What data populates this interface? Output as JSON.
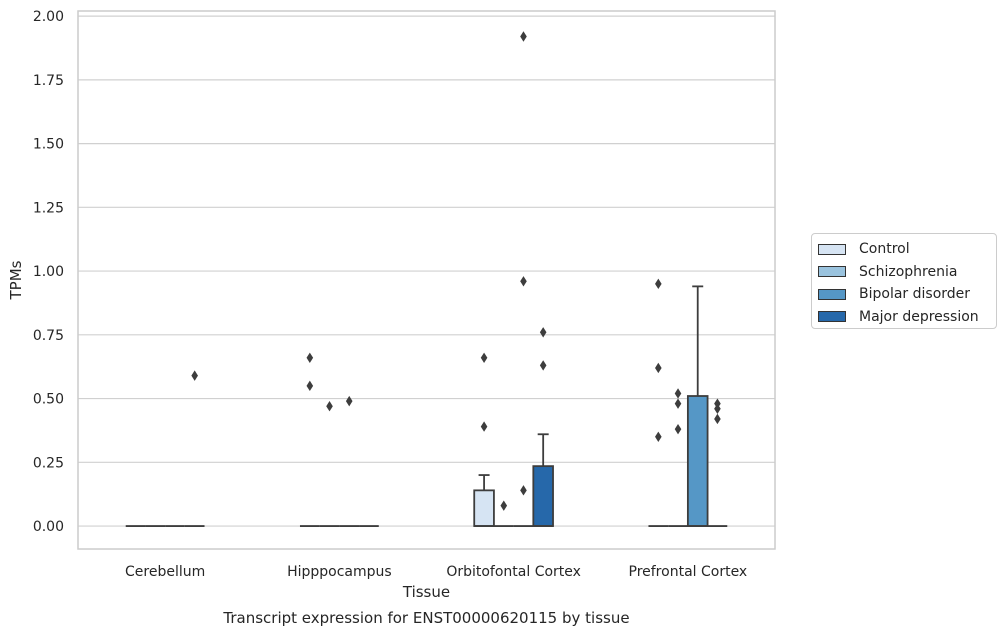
{
  "chart_data": {
    "type": "box",
    "title": "Transcript expression for ENST00000620115 by tissue",
    "xlabel": "Tissue",
    "ylabel": "TPMs",
    "ylim": [
      -0.09,
      2.02
    ],
    "yticks": [
      "0.00",
      "0.25",
      "0.50",
      "0.75",
      "1.00",
      "1.25",
      "1.50",
      "1.75",
      "2.00"
    ],
    "grid": true,
    "legend_position": "right",
    "categories": [
      "Cerebellum",
      "Hipppocampus",
      "Orbitofontal Cortex",
      "Prefrontal Cortex"
    ],
    "series": [
      {
        "name": "Control",
        "color": "#d6e4f3",
        "boxes": [
          {
            "q1": 0,
            "median": 0,
            "q3": 0,
            "whisker_low": 0,
            "whisker_high": 0,
            "outliers": []
          },
          {
            "q1": 0,
            "median": 0,
            "q3": 0,
            "whisker_low": 0,
            "whisker_high": 0,
            "outliers": [
              0.66,
              0.55
            ]
          },
          {
            "q1": 0,
            "median": 0,
            "q3": 0.14,
            "whisker_low": 0,
            "whisker_high": 0.2,
            "outliers": [
              0.66,
              0.39
            ]
          },
          {
            "q1": 0,
            "median": 0,
            "q3": 0,
            "whisker_low": 0,
            "whisker_high": 0,
            "outliers": [
              0.95,
              0.62,
              0.35
            ]
          }
        ]
      },
      {
        "name": "Schizophrenia",
        "color": "#9ac3de",
        "boxes": [
          {
            "q1": 0,
            "median": 0,
            "q3": 0,
            "whisker_low": 0,
            "whisker_high": 0,
            "outliers": []
          },
          {
            "q1": 0,
            "median": 0,
            "q3": 0,
            "whisker_low": 0,
            "whisker_high": 0,
            "outliers": [
              0.47
            ]
          },
          {
            "q1": 0,
            "median": 0,
            "q3": 0,
            "whisker_low": 0,
            "whisker_high": 0,
            "outliers": [
              0.08
            ]
          },
          {
            "q1": 0,
            "median": 0,
            "q3": 0,
            "whisker_low": 0,
            "whisker_high": 0,
            "outliers": [
              0.52,
              0.48,
              0.38
            ]
          }
        ]
      },
      {
        "name": "Bipolar disorder",
        "color": "#5597c6",
        "boxes": [
          {
            "q1": 0,
            "median": 0,
            "q3": 0,
            "whisker_low": 0,
            "whisker_high": 0,
            "outliers": []
          },
          {
            "q1": 0,
            "median": 0,
            "q3": 0,
            "whisker_low": 0,
            "whisker_high": 0,
            "outliers": [
              0.49
            ]
          },
          {
            "q1": 0,
            "median": 0,
            "q3": 0,
            "whisker_low": 0,
            "whisker_high": 0,
            "outliers": [
              1.92,
              0.96,
              0.14
            ]
          },
          {
            "q1": 0,
            "median": 0,
            "q3": 0.51,
            "whisker_low": 0,
            "whisker_high": 0.94,
            "outliers": []
          }
        ]
      },
      {
        "name": "Major depression",
        "color": "#2668aa",
        "boxes": [
          {
            "q1": 0,
            "median": 0,
            "q3": 0,
            "whisker_low": 0,
            "whisker_high": 0,
            "outliers": [
              0.59
            ]
          },
          {
            "q1": 0,
            "median": 0,
            "q3": 0,
            "whisker_low": 0,
            "whisker_high": 0,
            "outliers": []
          },
          {
            "q1": 0,
            "median": 0,
            "q3": 0.235,
            "whisker_low": 0,
            "whisker_high": 0.36,
            "outliers": [
              0.76,
              0.63
            ]
          },
          {
            "q1": 0,
            "median": 0,
            "q3": 0,
            "whisker_low": 0,
            "whisker_high": 0,
            "outliers": [
              0.48,
              0.46,
              0.42
            ]
          }
        ]
      }
    ]
  }
}
